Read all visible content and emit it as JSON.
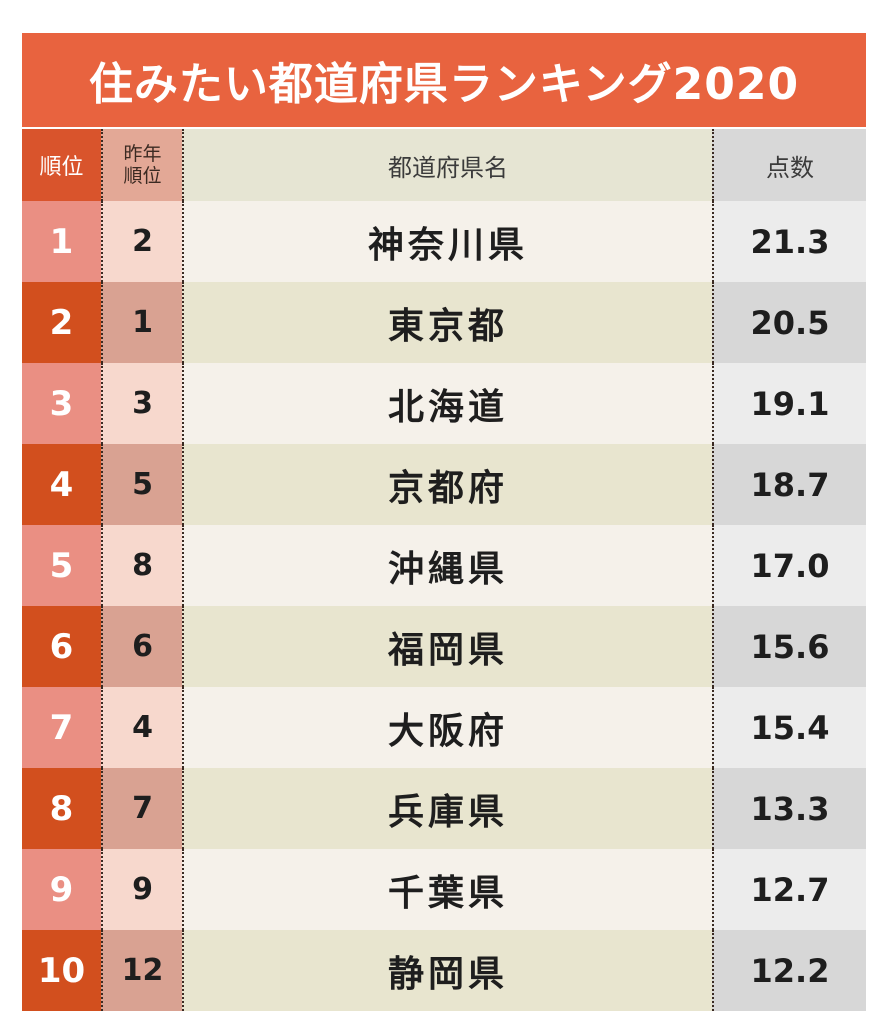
{
  "title": "住みたい都道府県ランキング2020",
  "header": {
    "rank": "順位",
    "prev_rank_line1": "昨年",
    "prev_rank_line2": "順位",
    "name": "都道府県名",
    "score": "点数"
  },
  "rows": [
    {
      "rank": "1",
      "prev": "2",
      "name": "神奈川県",
      "score": "21.3"
    },
    {
      "rank": "2",
      "prev": "1",
      "name": "東京都",
      "score": "20.5"
    },
    {
      "rank": "3",
      "prev": "3",
      "name": "北海道",
      "score": "19.1"
    },
    {
      "rank": "4",
      "prev": "5",
      "name": "京都府",
      "score": "18.7"
    },
    {
      "rank": "5",
      "prev": "8",
      "name": "沖縄県",
      "score": "17.0"
    },
    {
      "rank": "6",
      "prev": "6",
      "name": "福岡県",
      "score": "15.6"
    },
    {
      "rank": "7",
      "prev": "4",
      "name": "大阪府",
      "score": "15.4"
    },
    {
      "rank": "8",
      "prev": "7",
      "name": "兵庫県",
      "score": "13.3"
    },
    {
      "rank": "9",
      "prev": "9",
      "name": "千葉県",
      "score": "12.7"
    },
    {
      "rank": "10",
      "prev": "12",
      "name": "静岡県",
      "score": "12.2"
    }
  ],
  "colors": {
    "title_bg": "#e8633f",
    "rank_odd": "#ea8f83",
    "rank_even": "#d24f1e"
  }
}
